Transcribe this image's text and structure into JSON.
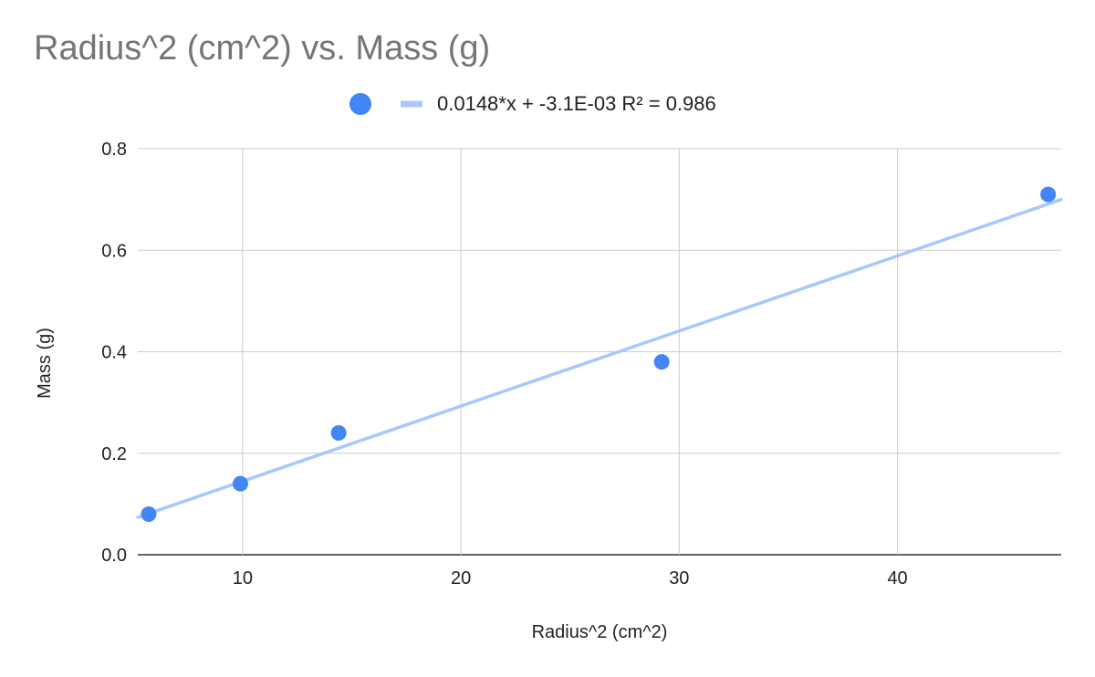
{
  "chart_data": {
    "type": "scatter",
    "title": "Radius^2 (cm^2) vs. Mass (g)",
    "xlabel": "Radius^2 (cm^2)",
    "ylabel": "Mass (g)",
    "xlim": [
      5.2,
      47.5
    ],
    "ylim": [
      0,
      0.8
    ],
    "x_ticks": [
      10,
      20,
      30,
      40
    ],
    "y_ticks": [
      0,
      0.2,
      0.4,
      0.6,
      0.8
    ],
    "x_tick_labels": [
      "10",
      "20",
      "30",
      "40"
    ],
    "y_tick_labels": [
      "0.0",
      "0.2",
      "0.4",
      "0.6",
      "0.8"
    ],
    "grid": true,
    "legend_position": "top",
    "series": [
      {
        "points": [
          {
            "x": 5.7,
            "y": 0.08
          },
          {
            "x": 9.9,
            "y": 0.14
          },
          {
            "x": 14.4,
            "y": 0.24
          },
          {
            "x": 29.2,
            "y": 0.38
          },
          {
            "x": 46.9,
            "y": 0.71
          }
        ],
        "color": "#4285f4"
      }
    ],
    "trendline": {
      "type": "linear",
      "slope": 0.0148,
      "intercept": -0.0031,
      "label": "0.0148*x + -3.1E-03 R² = 0.986",
      "color": "#a8c7fa"
    }
  }
}
